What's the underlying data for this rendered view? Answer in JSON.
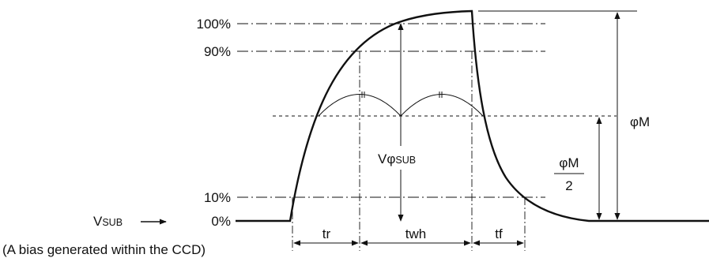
{
  "levels": {
    "p100": "100%",
    "p90": "90%",
    "p10": "10%",
    "p0": "0%"
  },
  "signal": {
    "v_main": "V",
    "sub_small": "SUB",
    "arrow_glyph": "—▶"
  },
  "measure": {
    "v_main": "V",
    "phi": "φ",
    "sub_small": "SUB"
  },
  "times": {
    "tr": "tr",
    "twh": "twh",
    "tf": "tf"
  },
  "amplitude": {
    "full": "φM",
    "half_num": "φM",
    "half_den": "2"
  },
  "note": "(A bias generated within the CCD)"
}
